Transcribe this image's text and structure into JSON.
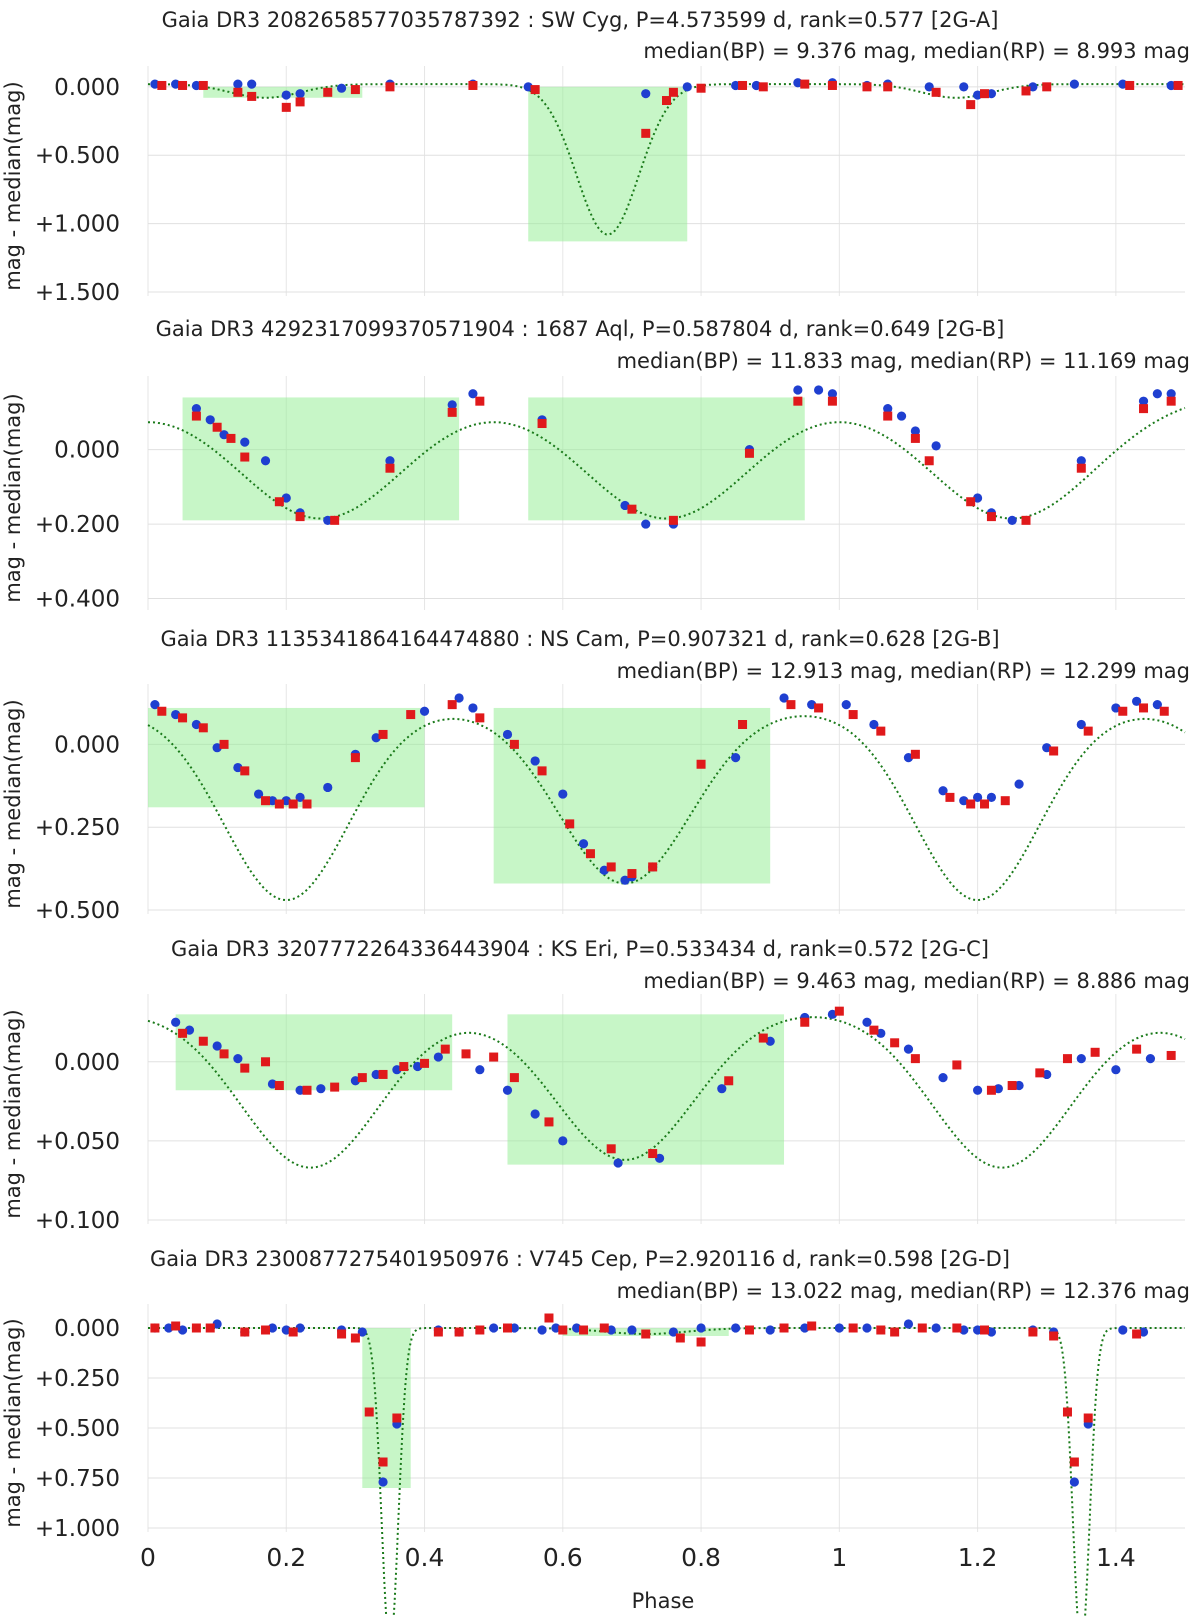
{
  "chart_data": [
    {
      "type": "scatter",
      "title": "Gaia DR3 2082658577035787392 : SW Cyg, P=4.573599 d, rank=0.577 [2G-A]",
      "subtitle": "median(BP) = 9.376 mag, median(RP) = 8.993 mag",
      "ylabel": "mag - median(mag)",
      "yticks": [
        "0.000",
        "+0.500",
        "+1.000",
        "+1.500"
      ],
      "ylim": [
        -0.05,
        1.5
      ],
      "xlim": [
        0,
        1.5
      ],
      "colors": {
        "bp": "#1f3fd0",
        "rp": "#e0191b",
        "model": "#1a7a1a",
        "window": "#90ee90"
      },
      "windows": [
        [
          0.08,
          0.31,
          0.0,
          0.08
        ],
        [
          0.55,
          0.78,
          0.0,
          1.13
        ]
      ],
      "model": {
        "period": 1.0,
        "base": -0.02,
        "dips": [
          {
            "center": 0.17,
            "depth": 0.1,
            "width": 0.05
          },
          {
            "center": 0.665,
            "depth": 1.1,
            "width": 0.045
          }
        ]
      },
      "series": [
        {
          "name": "",
          "role": "bp",
          "x": [
            0.01,
            0.04,
            0.07,
            0.13,
            0.15,
            0.2,
            0.22,
            0.28,
            0.35,
            0.47,
            0.55,
            0.72,
            0.78,
            0.85,
            0.88,
            0.94,
            0.99,
            1.04,
            1.07,
            1.13,
            1.18,
            1.2,
            1.22,
            1.28,
            1.34,
            1.41,
            1.48
          ],
          "y": [
            -0.02,
            -0.02,
            -0.01,
            -0.02,
            -0.02,
            0.06,
            0.05,
            0.01,
            -0.02,
            -0.02,
            0.0,
            0.05,
            0.0,
            -0.01,
            -0.01,
            -0.03,
            -0.03,
            -0.01,
            -0.02,
            0.0,
            0.0,
            0.06,
            0.05,
            0.0,
            -0.02,
            -0.02,
            -0.01
          ]
        },
        {
          "name": "",
          "role": "rp",
          "x": [
            0.02,
            0.05,
            0.08,
            0.13,
            0.15,
            0.2,
            0.22,
            0.26,
            0.3,
            0.35,
            0.47,
            0.56,
            0.72,
            0.75,
            0.76,
            0.8,
            0.86,
            0.89,
            0.95,
            0.99,
            1.04,
            1.07,
            1.14,
            1.19,
            1.21,
            1.27,
            1.3,
            1.42,
            1.49
          ],
          "y": [
            -0.01,
            -0.01,
            -0.01,
            0.04,
            0.07,
            0.15,
            0.11,
            0.04,
            0.02,
            0.0,
            -0.01,
            0.02,
            0.34,
            0.1,
            0.04,
            0.01,
            -0.01,
            0.0,
            -0.02,
            -0.01,
            0.0,
            0.0,
            0.04,
            0.13,
            0.05,
            0.03,
            0.0,
            -0.01,
            -0.01
          ]
        }
      ]
    },
    {
      "type": "scatter",
      "title": "Gaia DR3 4292317099370571904 : 1687 Aql, P=0.587804 d, rank=0.649 [2G-B]",
      "subtitle": "median(BP) = 11.833 mag, median(RP) = 11.169 mag",
      "ylabel": "mag - median(mag)",
      "yticks": [
        "0.000",
        "+0.200",
        "+0.400"
      ],
      "ylim": [
        -0.16,
        0.42
      ],
      "xlim": [
        0,
        1.5
      ],
      "colors": {
        "bp": "#1f3fd0",
        "rp": "#e0191b",
        "model": "#1a7a1a",
        "window": "#90ee90"
      },
      "windows": [
        [
          0.05,
          0.45,
          -0.14,
          0.19
        ],
        [
          0.55,
          0.95,
          -0.14,
          0.19
        ]
      ],
      "model": {
        "period": 0.5,
        "base": -0.15,
        "dips": [
          {
            "center": 0.25,
            "depth": 0.335,
            "width": 0.12
          }
        ]
      },
      "series": [
        {
          "name": "",
          "role": "bp",
          "x": [
            0.07,
            0.09,
            0.11,
            0.14,
            0.17,
            0.2,
            0.22,
            0.26,
            0.35,
            0.44,
            0.47,
            0.57,
            0.69,
            0.72,
            0.76,
            0.87,
            0.94,
            0.97,
            0.99,
            1.07,
            1.09,
            1.11,
            1.14,
            1.2,
            1.22,
            1.25,
            1.35,
            1.44,
            1.46,
            1.48
          ],
          "y": [
            -0.11,
            -0.08,
            -0.04,
            -0.02,
            0.03,
            0.13,
            0.17,
            0.19,
            0.03,
            -0.12,
            -0.15,
            -0.08,
            0.15,
            0.2,
            0.2,
            0.0,
            -0.16,
            -0.16,
            -0.15,
            -0.11,
            -0.09,
            -0.05,
            -0.01,
            0.13,
            0.17,
            0.19,
            0.03,
            -0.13,
            -0.15,
            -0.15
          ]
        },
        {
          "name": "",
          "role": "rp",
          "x": [
            0.07,
            0.1,
            0.12,
            0.14,
            0.19,
            0.22,
            0.27,
            0.35,
            0.44,
            0.48,
            0.57,
            0.7,
            0.76,
            0.87,
            0.94,
            0.99,
            1.07,
            1.11,
            1.13,
            1.19,
            1.22,
            1.27,
            1.35,
            1.44,
            1.48
          ],
          "y": [
            -0.09,
            -0.06,
            -0.03,
            0.02,
            0.14,
            0.18,
            0.19,
            0.05,
            -0.1,
            -0.13,
            -0.07,
            0.16,
            0.19,
            0.01,
            -0.13,
            -0.13,
            -0.09,
            -0.03,
            0.03,
            0.14,
            0.18,
            0.19,
            0.05,
            -0.11,
            -0.13
          ]
        }
      ]
    },
    {
      "type": "scatter",
      "title": "Gaia DR3 1135341864164474880 : NS Cam, P=0.907321 d, rank=0.628 [2G-B]",
      "subtitle": "median(BP) = 12.913 mag, median(RP) = 12.299 mag",
      "ylabel": "mag - median(mag)",
      "yticks": [
        "0.000",
        "+0.250",
        "+0.500"
      ],
      "ylim": [
        -0.14,
        0.5
      ],
      "xlim": [
        0,
        1.5
      ],
      "colors": {
        "bp": "#1f3fd0",
        "rp": "#e0191b",
        "model": "#1a7a1a",
        "window": "#90ee90"
      },
      "windows": [
        [
          0.0,
          0.4,
          -0.11,
          0.19
        ],
        [
          0.5,
          0.9,
          -0.11,
          0.42
        ]
      ],
      "model": {
        "period": 1.0,
        "base": -0.11,
        "dips": [
          {
            "center": 0.2,
            "depth": 0.29,
            "width": 0.09
          },
          {
            "center": 0.69,
            "depth": 0.53,
            "width": 0.095
          },
          {
            "center": 1.2,
            "depth": 0.29,
            "width": 0.09
          }
        ]
      },
      "series": [
        {
          "name": "",
          "role": "bp",
          "x": [
            0.01,
            0.04,
            0.07,
            0.1,
            0.13,
            0.16,
            0.18,
            0.2,
            0.22,
            0.26,
            0.3,
            0.33,
            0.4,
            0.45,
            0.47,
            0.52,
            0.56,
            0.6,
            0.63,
            0.66,
            0.69,
            0.7,
            0.73,
            0.85,
            0.92,
            0.96,
            1.01,
            1.05,
            1.1,
            1.15,
            1.18,
            1.2,
            1.22,
            1.26,
            1.3,
            1.35,
            1.4,
            1.43,
            1.46
          ],
          "y": [
            -0.12,
            -0.09,
            -0.06,
            0.01,
            0.07,
            0.15,
            0.17,
            0.17,
            0.16,
            0.13,
            0.03,
            -0.02,
            -0.1,
            -0.14,
            -0.11,
            -0.03,
            0.05,
            0.15,
            0.3,
            0.38,
            0.41,
            0.4,
            0.37,
            0.04,
            -0.14,
            -0.12,
            -0.12,
            -0.06,
            0.04,
            0.14,
            0.17,
            0.16,
            0.16,
            0.12,
            0.01,
            -0.06,
            -0.11,
            -0.13,
            -0.12
          ]
        },
        {
          "name": "",
          "role": "rp",
          "x": [
            0.02,
            0.05,
            0.08,
            0.11,
            0.14,
            0.17,
            0.19,
            0.21,
            0.23,
            0.3,
            0.34,
            0.38,
            0.44,
            0.48,
            0.53,
            0.57,
            0.61,
            0.64,
            0.67,
            0.7,
            0.73,
            0.8,
            0.86,
            0.93,
            0.97,
            1.02,
            1.06,
            1.11,
            1.16,
            1.19,
            1.21,
            1.24,
            1.31,
            1.36,
            1.41,
            1.44,
            1.47
          ],
          "y": [
            -0.1,
            -0.08,
            -0.05,
            0.0,
            0.08,
            0.17,
            0.18,
            0.18,
            0.18,
            0.04,
            -0.03,
            -0.09,
            -0.12,
            -0.08,
            -0.0,
            0.08,
            0.24,
            0.33,
            0.37,
            0.39,
            0.37,
            0.06,
            -0.06,
            -0.12,
            -0.11,
            -0.09,
            -0.04,
            0.03,
            0.16,
            0.18,
            0.18,
            0.17,
            0.02,
            -0.04,
            -0.1,
            -0.11,
            -0.1
          ]
        }
      ]
    },
    {
      "type": "scatter",
      "title": "Gaia DR3 3207772264336443904 : KS Eri, P=0.533434 d, rank=0.572 [2G-C]",
      "subtitle": "median(BP) = 9.463 mag, median(RP) = 8.886 mag",
      "ylabel": "mag - median(mag)",
      "yticks": [
        "0.000",
        "+0.050",
        "+0.100"
      ],
      "ylim": [
        -0.034,
        0.1
      ],
      "xlim": [
        0,
        1.5
      ],
      "colors": {
        "bp": "#1f3fd0",
        "rp": "#e0191b",
        "model": "#1a7a1a",
        "window": "#90ee90"
      },
      "windows": [
        [
          0.04,
          0.44,
          -0.03,
          0.018
        ],
        [
          0.52,
          0.92,
          -0.03,
          0.065
        ]
      ],
      "model": {
        "period": 1.0,
        "base": -0.033,
        "dips": [
          {
            "center": 0.24,
            "depth": 0.05,
            "width": 0.1
          },
          {
            "center": 0.69,
            "depth": 0.095,
            "width": 0.1
          },
          {
            "center": 1.23,
            "depth": 0.05,
            "width": 0.1
          }
        ]
      },
      "series": [
        {
          "name": "",
          "role": "bp",
          "x": [
            0.04,
            0.06,
            0.1,
            0.13,
            0.18,
            0.22,
            0.25,
            0.3,
            0.33,
            0.36,
            0.39,
            0.42,
            0.48,
            0.52,
            0.56,
            0.6,
            0.68,
            0.74,
            0.83,
            0.9,
            0.95,
            0.99,
            1.04,
            1.06,
            1.1,
            1.15,
            1.2,
            1.23,
            1.26,
            1.3,
            1.35,
            1.4,
            1.45
          ],
          "y": [
            -0.025,
            -0.02,
            -0.01,
            -0.002,
            0.014,
            0.018,
            0.017,
            0.012,
            0.008,
            0.005,
            0.003,
            -0.003,
            0.005,
            0.018,
            0.033,
            0.05,
            0.064,
            0.061,
            0.017,
            -0.013,
            -0.028,
            -0.03,
            -0.025,
            -0.018,
            -0.008,
            0.01,
            0.018,
            0.017,
            0.015,
            0.008,
            -0.002,
            0.005,
            -0.002
          ]
        },
        {
          "name": "",
          "role": "rp",
          "x": [
            0.05,
            0.08,
            0.11,
            0.14,
            0.17,
            0.19,
            0.23,
            0.27,
            0.31,
            0.34,
            0.37,
            0.4,
            0.43,
            0.46,
            0.5,
            0.53,
            0.58,
            0.67,
            0.73,
            0.84,
            0.89,
            0.95,
            1.0,
            1.05,
            1.08,
            1.11,
            1.17,
            1.22,
            1.25,
            1.29,
            1.33,
            1.37,
            1.43,
            1.48
          ],
          "y": [
            -0.018,
            -0.013,
            -0.005,
            0.004,
            0.0,
            0.015,
            0.018,
            0.016,
            0.01,
            0.008,
            0.003,
            0.001,
            -0.008,
            -0.005,
            -0.003,
            0.01,
            0.038,
            0.055,
            0.058,
            0.012,
            -0.015,
            -0.025,
            -0.032,
            -0.02,
            -0.012,
            -0.002,
            0.002,
            0.018,
            0.015,
            0.007,
            -0.002,
            -0.006,
            -0.008,
            -0.004
          ]
        }
      ]
    },
    {
      "type": "scatter",
      "title": "Gaia DR3 2300877275401950976 : V745 Cep, P=2.920116 d, rank=0.598 [2G-D]",
      "subtitle": "median(BP) = 13.022 mag, median(RP) = 12.376 mag",
      "ylabel": "mag - median(mag)",
      "yticks": [
        "0.000",
        "+0.250",
        "+0.500",
        "+0.750",
        "+1.000"
      ],
      "ylim": [
        -0.05,
        1.0
      ],
      "xlim": [
        0,
        1.5
      ],
      "xticks": [
        "0",
        "0.2",
        "0.4",
        "0.6",
        "0.8",
        "1",
        "1.2",
        "1.4"
      ],
      "xlabel": "Phase",
      "colors": {
        "bp": "#1f3fd0",
        "rp": "#e0191b",
        "model": "#1a7a1a",
        "window": "#90ee90"
      },
      "windows": [
        [
          0.31,
          0.38,
          0.0,
          0.8
        ],
        [
          0.6,
          0.84,
          0.0,
          0.04
        ]
      ],
      "model": {
        "period": 1.0,
        "base": 0.0,
        "dips": [
          {
            "center": 0.35,
            "depth": 0.8,
            "width": 0.012
          },
          {
            "center": 0.72,
            "depth": 0.03,
            "width": 0.06
          },
          {
            "center": 1.35,
            "depth": 0.8,
            "width": 0.012
          }
        ]
      },
      "series": [
        {
          "name": "",
          "role": "bp",
          "x": [
            0.01,
            0.03,
            0.05,
            0.1,
            0.14,
            0.18,
            0.2,
            0.22,
            0.28,
            0.31,
            0.34,
            0.36,
            0.42,
            0.45,
            0.5,
            0.53,
            0.57,
            0.59,
            0.62,
            0.67,
            0.7,
            0.76,
            0.8,
            0.85,
            0.9,
            0.95,
            1.0,
            1.04,
            1.1,
            1.14,
            1.18,
            1.2,
            1.22,
            1.28,
            1.31,
            1.34,
            1.36,
            1.41,
            1.44
          ],
          "y": [
            0.0,
            0.0,
            0.01,
            -0.02,
            0.02,
            0.0,
            0.01,
            0.0,
            0.01,
            0.02,
            0.77,
            0.48,
            0.01,
            0.02,
            0.0,
            0.0,
            0.01,
            0.0,
            0.0,
            0.01,
            0.01,
            0.02,
            0.0,
            0.0,
            0.01,
            0.0,
            0.0,
            0.0,
            -0.02,
            0.0,
            0.01,
            0.01,
            0.02,
            0.01,
            0.02,
            0.77,
            0.48,
            0.01,
            0.02
          ]
        },
        {
          "name": "",
          "role": "rp",
          "x": [
            0.01,
            0.04,
            0.07,
            0.09,
            0.14,
            0.17,
            0.21,
            0.28,
            0.3,
            0.32,
            0.34,
            0.36,
            0.42,
            0.45,
            0.48,
            0.52,
            0.58,
            0.6,
            0.63,
            0.66,
            0.72,
            0.77,
            0.8,
            0.87,
            0.92,
            0.96,
            1.02,
            1.06,
            1.08,
            1.12,
            1.17,
            1.21,
            1.28,
            1.31,
            1.33,
            1.34,
            1.36,
            1.43
          ],
          "y": [
            0.0,
            -0.01,
            0.0,
            0.0,
            0.02,
            0.01,
            0.02,
            0.03,
            0.05,
            0.42,
            0.67,
            0.45,
            0.02,
            0.02,
            0.01,
            0.0,
            -0.05,
            0.01,
            0.01,
            0.0,
            0.03,
            0.05,
            0.07,
            0.01,
            0.0,
            -0.01,
            0.0,
            0.01,
            0.02,
            0.0,
            0.0,
            0.01,
            0.02,
            0.04,
            0.42,
            0.67,
            0.45,
            0.03
          ]
        }
      ]
    }
  ]
}
